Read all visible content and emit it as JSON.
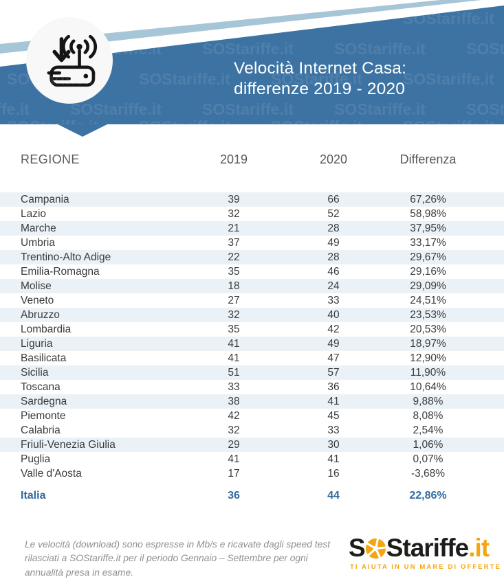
{
  "header": {
    "title_line1": "Velocità Internet Casa:",
    "title_line2": "differenze 2019 - 2020",
    "watermark": "SOStariffe.it",
    "icon": "modem-router-with-download-arrow-and-wifi"
  },
  "table": {
    "columns": [
      "REGIONE",
      "2019",
      "2020",
      "Differenza"
    ],
    "rows": [
      {
        "region": "Campania",
        "y2019": "39",
        "y2020": "66",
        "diff": "67,26%",
        "striped": true
      },
      {
        "region": "Lazio",
        "y2019": "32",
        "y2020": "52",
        "diff": "58,98%",
        "striped": false
      },
      {
        "region": "Marche",
        "y2019": "21",
        "y2020": "28",
        "diff": "37,95%",
        "striped": true
      },
      {
        "region": "Umbria",
        "y2019": "37",
        "y2020": "49",
        "diff": "33,17%",
        "striped": false
      },
      {
        "region": "Trentino-Alto Adige",
        "y2019": "22",
        "y2020": "28",
        "diff": "29,67%",
        "striped": true
      },
      {
        "region": "Emilia-Romagna",
        "y2019": "35",
        "y2020": "46",
        "diff": "29,16%",
        "striped": false
      },
      {
        "region": "Molise",
        "y2019": "18",
        "y2020": "24",
        "diff": "29,09%",
        "striped": true
      },
      {
        "region": "Veneto",
        "y2019": "27",
        "y2020": "33",
        "diff": "24,51%",
        "striped": false
      },
      {
        "region": "Abruzzo",
        "y2019": "32",
        "y2020": "40",
        "diff": "23,53%",
        "striped": true
      },
      {
        "region": "Lombardia",
        "y2019": "35",
        "y2020": "42",
        "diff": "20,53%",
        "striped": false
      },
      {
        "region": "Liguria",
        "y2019": "41",
        "y2020": "49",
        "diff": "18,97%",
        "striped": true
      },
      {
        "region": "Basilicata",
        "y2019": "41",
        "y2020": "47",
        "diff": "12,90%",
        "striped": false
      },
      {
        "region": "Sicilia",
        "y2019": "51",
        "y2020": "57",
        "diff": "11,90%",
        "striped": true
      },
      {
        "region": "Toscana",
        "y2019": "33",
        "y2020": "36",
        "diff": "10,64%",
        "striped": false
      },
      {
        "region": "Sardegna",
        "y2019": "38",
        "y2020": "41",
        "diff": "9,88%",
        "striped": true
      },
      {
        "region": "Piemonte",
        "y2019": "42",
        "y2020": "45",
        "diff": "8,08%",
        "striped": false
      },
      {
        "region": "Calabria",
        "y2019": "32",
        "y2020": "33",
        "diff": "2,54%",
        "striped": false
      },
      {
        "region": "Friuli-Venezia Giulia",
        "y2019": "29",
        "y2020": "30",
        "diff": "1,06%",
        "striped": true
      },
      {
        "region": "Puglia",
        "y2019": "41",
        "y2020": "41",
        "diff": "0,07%",
        "striped": false
      },
      {
        "region": "Valle d'Aosta",
        "y2019": "17",
        "y2020": "16",
        "diff": "-3,68%",
        "striped": false
      }
    ],
    "total": {
      "region": "Italia",
      "y2019": "36",
      "y2020": "44",
      "diff": "22,86%"
    }
  },
  "footer": {
    "note": "Le velocità (download) sono espresse in Mb/s e ricavate dagli speed test rilasciati a SOStariffe.it per il periodo Gennaio – Settembre per ogni annualità presa in esame.",
    "logo": {
      "s1": "S",
      "s2": "S",
      "name": "tariffe",
      "tld": ".it",
      "tagline": "TI AIUTA IN UN MARE DI OFFERTE"
    }
  },
  "colors": {
    "banner_blue": "#3d73a3",
    "stripe_light_blue": "#a6c6d8",
    "row_stripe": "#eaf1f7",
    "total_blue": "#336a9e",
    "logo_orange": "#f5a50f",
    "logo_black": "#1d1d1b",
    "header_gray": "#58595b",
    "note_gray": "#8f8f8f"
  },
  "chart_data": {
    "type": "table",
    "title": "Velocità Internet Casa: differenze 2019 - 2020",
    "columns": [
      "REGIONE",
      "2019",
      "2020",
      "Differenza"
    ],
    "units": "Mb/s (download)",
    "rows": [
      [
        "Campania",
        39,
        66,
        "67,26%"
      ],
      [
        "Lazio",
        32,
        52,
        "58,98%"
      ],
      [
        "Marche",
        21,
        28,
        "37,95%"
      ],
      [
        "Umbria",
        37,
        49,
        "33,17%"
      ],
      [
        "Trentino-Alto Adige",
        22,
        28,
        "29,67%"
      ],
      [
        "Emilia-Romagna",
        35,
        46,
        "29,16%"
      ],
      [
        "Molise",
        18,
        24,
        "29,09%"
      ],
      [
        "Veneto",
        27,
        33,
        "24,51%"
      ],
      [
        "Abruzzo",
        32,
        40,
        "23,53%"
      ],
      [
        "Lombardia",
        35,
        42,
        "20,53%"
      ],
      [
        "Liguria",
        41,
        49,
        "18,97%"
      ],
      [
        "Basilicata",
        41,
        47,
        "12,90%"
      ],
      [
        "Sicilia",
        51,
        57,
        "11,90%"
      ],
      [
        "Toscana",
        33,
        36,
        "10,64%"
      ],
      [
        "Sardegna",
        38,
        41,
        "9,88%"
      ],
      [
        "Piemonte",
        42,
        45,
        "8,08%"
      ],
      [
        "Calabria",
        32,
        33,
        "2,54%"
      ],
      [
        "Friuli-Venezia Giulia",
        29,
        30,
        "1,06%"
      ],
      [
        "Puglia",
        41,
        41,
        "0,07%"
      ],
      [
        "Valle d'Aosta",
        17,
        16,
        "-3,68%"
      ]
    ],
    "total_row": [
      "Italia",
      36,
      44,
      "22,86%"
    ],
    "note": "Le velocità (download) sono espresse in Mb/s e ricavate dagli speed test rilasciati a SOStariffe.it per il periodo Gennaio – Settembre per ogni annualità presa in esame."
  }
}
